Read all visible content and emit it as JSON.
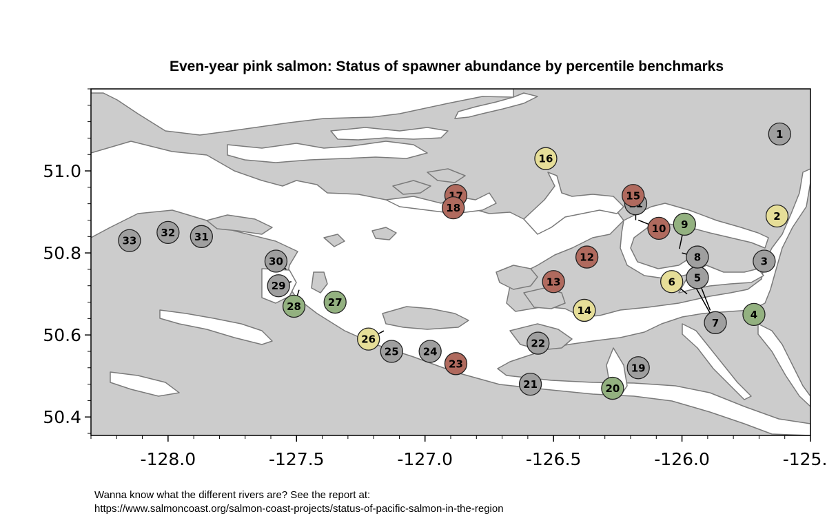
{
  "title": "Even-year pink salmon: Status of spawner abundance by percentile benchmarks",
  "axes": {
    "x_ticks": [
      -128.0,
      -127.5,
      -127.0,
      -126.5,
      -126.0,
      -125.5
    ],
    "x_tick_labels": [
      "-128.0",
      "-127.5",
      "-127.0",
      "-126.5",
      "-126.0",
      "-125.5"
    ],
    "y_ticks": [
      50.4,
      50.6,
      50.8,
      51.0
    ],
    "y_tick_labels": [
      "50.4",
      "50.6",
      "50.8",
      "51.0"
    ],
    "xlim": [
      -128.3,
      -125.5
    ],
    "ylim": [
      50.355,
      51.2
    ]
  },
  "colors": {
    "land": "#cccccc",
    "water": "#ffffff",
    "coastline": "#7a7a7a",
    "red": "#b06a5e",
    "green": "#93b180",
    "yellow": "#e6de98",
    "grey": "#9f9f9f"
  },
  "sites": [
    {
      "id": "1",
      "lon": -125.62,
      "lat": 51.09,
      "status": "grey"
    },
    {
      "id": "2",
      "lon": -125.63,
      "lat": 50.89,
      "status": "yellow"
    },
    {
      "id": "3",
      "lon": -125.68,
      "lat": 50.78,
      "status": "grey"
    },
    {
      "id": "4",
      "lon": -125.72,
      "lat": 50.65,
      "status": "green"
    },
    {
      "id": "5",
      "lon": -125.94,
      "lat": 50.74,
      "status": "grey",
      "leader": {
        "lon": -125.89,
        "lat": 50.66
      }
    },
    {
      "id": "6",
      "lon": -126.04,
      "lat": 50.73,
      "status": "yellow",
      "leader": {
        "lon": -125.98,
        "lat": 50.7
      }
    },
    {
      "id": "7",
      "lon": -125.87,
      "lat": 50.63,
      "status": "grey",
      "leader": {
        "lon": -125.95,
        "lat": 50.72
      }
    },
    {
      "id": "8",
      "lon": -125.94,
      "lat": 50.79,
      "status": "grey",
      "leader": {
        "lon": -126.0,
        "lat": 50.8
      }
    },
    {
      "id": "9",
      "lon": -125.99,
      "lat": 50.87,
      "status": "green",
      "leader": {
        "lon": -126.01,
        "lat": 50.81
      }
    },
    {
      "id": "10",
      "lon": -126.09,
      "lat": 50.86,
      "status": "red",
      "leader": {
        "lon": -126.17,
        "lat": 50.88
      }
    },
    {
      "id": "11",
      "lon": -126.18,
      "lat": 50.92,
      "status": "grey",
      "leader": {
        "lon": -126.18,
        "lat": 50.88
      }
    },
    {
      "id": "12",
      "lon": -126.37,
      "lat": 50.79,
      "status": "red"
    },
    {
      "id": "13",
      "lon": -126.5,
      "lat": 50.73,
      "status": "red"
    },
    {
      "id": "14",
      "lon": -126.38,
      "lat": 50.66,
      "status": "yellow"
    },
    {
      "id": "15",
      "lon": -126.19,
      "lat": 50.94,
      "status": "red"
    },
    {
      "id": "16",
      "lon": -126.53,
      "lat": 51.03,
      "status": "yellow"
    },
    {
      "id": "17",
      "lon": -126.88,
      "lat": 50.94,
      "status": "red"
    },
    {
      "id": "18",
      "lon": -126.89,
      "lat": 50.91,
      "status": "red"
    },
    {
      "id": "19",
      "lon": -126.17,
      "lat": 50.52,
      "status": "grey"
    },
    {
      "id": "20",
      "lon": -126.27,
      "lat": 50.47,
      "status": "green"
    },
    {
      "id": "21",
      "lon": -126.59,
      "lat": 50.48,
      "status": "grey"
    },
    {
      "id": "22",
      "lon": -126.56,
      "lat": 50.58,
      "status": "grey"
    },
    {
      "id": "23",
      "lon": -126.88,
      "lat": 50.53,
      "status": "red"
    },
    {
      "id": "24",
      "lon": -126.98,
      "lat": 50.56,
      "status": "grey"
    },
    {
      "id": "25",
      "lon": -127.13,
      "lat": 50.56,
      "status": "grey"
    },
    {
      "id": "26",
      "lon": -127.22,
      "lat": 50.59,
      "status": "yellow",
      "leader": {
        "lon": -127.16,
        "lat": 50.61
      }
    },
    {
      "id": "27",
      "lon": -127.35,
      "lat": 50.68,
      "status": "green"
    },
    {
      "id": "28",
      "lon": -127.51,
      "lat": 50.67,
      "status": "green",
      "leader": {
        "lon": -127.49,
        "lat": 50.71
      }
    },
    {
      "id": "29",
      "lon": -127.57,
      "lat": 50.72,
      "status": "grey",
      "leader": {
        "lon": -127.52,
        "lat": 50.73
      }
    },
    {
      "id": "30",
      "lon": -127.58,
      "lat": 50.78,
      "status": "grey",
      "leader": {
        "lon": -127.54,
        "lat": 50.76
      }
    },
    {
      "id": "31",
      "lon": -127.87,
      "lat": 50.84,
      "status": "grey"
    },
    {
      "id": "32",
      "lon": -128.0,
      "lat": 50.85,
      "status": "grey"
    },
    {
      "id": "33",
      "lon": -128.15,
      "lat": 50.83,
      "status": "grey"
    }
  ],
  "footer": {
    "line1": "Wanna know what the different rivers are? See the report at:",
    "line2": "https://www.salmoncoast.org/salmon-coast-projects/status-of-pacific-salmon-in-the-region"
  }
}
